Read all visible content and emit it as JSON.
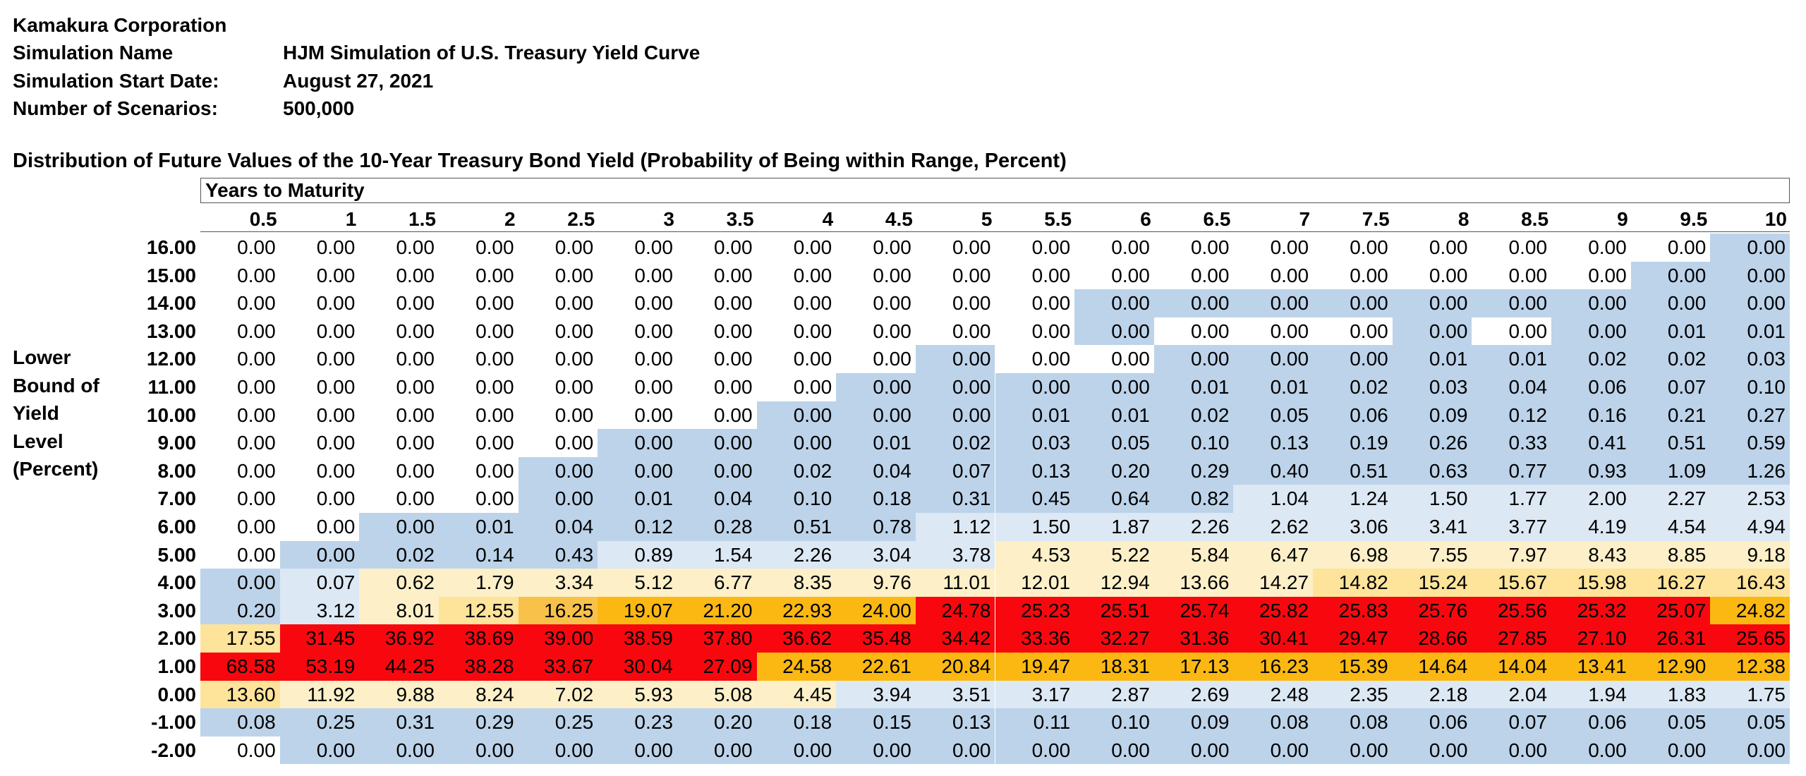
{
  "header": {
    "company": "Kamakura Corporation",
    "rows": [
      {
        "key": "Simulation Name",
        "value": "HJM Simulation of U.S. Treasury Yield Curve"
      },
      {
        "key": "Simulation Start Date:",
        "value": "August 27, 2021"
      },
      {
        "key": "Number of Scenarios:",
        "value": "500,000"
      }
    ]
  },
  "table_title": "Distribution of Future Values of the 10-Year Treasury Bond Yield (Probability of Being within Range, Percent)",
  "column_group_label": "Years to Maturity",
  "side_label_lines": [
    "Lower",
    "Bound of",
    "Yield",
    "Level",
    "(Percent)"
  ],
  "columns": [
    "0.5",
    "1",
    "1.5",
    "2",
    "2.5",
    "3",
    "3.5",
    "4",
    "4.5",
    "5",
    "5.5",
    "6",
    "6.5",
    "7",
    "7.5",
    "8",
    "8.5",
    "9",
    "9.5",
    "10"
  ],
  "rows": [
    {
      "label": "16.00",
      "values": [
        "0.00",
        "0.00",
        "0.00",
        "0.00",
        "0.00",
        "0.00",
        "0.00",
        "0.00",
        "0.00",
        "0.00",
        "0.00",
        "0.00",
        "0.00",
        "0.00",
        "0.00",
        "0.00",
        "0.00",
        "0.00",
        "0.00",
        "0.00"
      ]
    },
    {
      "label": "15.00",
      "values": [
        "0.00",
        "0.00",
        "0.00",
        "0.00",
        "0.00",
        "0.00",
        "0.00",
        "0.00",
        "0.00",
        "0.00",
        "0.00",
        "0.00",
        "0.00",
        "0.00",
        "0.00",
        "0.00",
        "0.00",
        "0.00",
        "0.00",
        "0.00"
      ]
    },
    {
      "label": "14.00",
      "values": [
        "0.00",
        "0.00",
        "0.00",
        "0.00",
        "0.00",
        "0.00",
        "0.00",
        "0.00",
        "0.00",
        "0.00",
        "0.00",
        "0.00",
        "0.00",
        "0.00",
        "0.00",
        "0.00",
        "0.00",
        "0.00",
        "0.00",
        "0.00"
      ]
    },
    {
      "label": "13.00",
      "values": [
        "0.00",
        "0.00",
        "0.00",
        "0.00",
        "0.00",
        "0.00",
        "0.00",
        "0.00",
        "0.00",
        "0.00",
        "0.00",
        "0.00",
        "0.00",
        "0.00",
        "0.00",
        "0.00",
        "0.00",
        "0.00",
        "0.01",
        "0.01"
      ]
    },
    {
      "label": "12.00",
      "values": [
        "0.00",
        "0.00",
        "0.00",
        "0.00",
        "0.00",
        "0.00",
        "0.00",
        "0.00",
        "0.00",
        "0.00",
        "0.00",
        "0.00",
        "0.00",
        "0.00",
        "0.00",
        "0.01",
        "0.01",
        "0.02",
        "0.02",
        "0.03"
      ]
    },
    {
      "label": "11.00",
      "values": [
        "0.00",
        "0.00",
        "0.00",
        "0.00",
        "0.00",
        "0.00",
        "0.00",
        "0.00",
        "0.00",
        "0.00",
        "0.00",
        "0.00",
        "0.01",
        "0.01",
        "0.02",
        "0.03",
        "0.04",
        "0.06",
        "0.07",
        "0.10"
      ]
    },
    {
      "label": "10.00",
      "values": [
        "0.00",
        "0.00",
        "0.00",
        "0.00",
        "0.00",
        "0.00",
        "0.00",
        "0.00",
        "0.00",
        "0.00",
        "0.01",
        "0.01",
        "0.02",
        "0.05",
        "0.06",
        "0.09",
        "0.12",
        "0.16",
        "0.21",
        "0.27"
      ]
    },
    {
      "label": "9.00",
      "values": [
        "0.00",
        "0.00",
        "0.00",
        "0.00",
        "0.00",
        "0.00",
        "0.00",
        "0.00",
        "0.01",
        "0.02",
        "0.03",
        "0.05",
        "0.10",
        "0.13",
        "0.19",
        "0.26",
        "0.33",
        "0.41",
        "0.51",
        "0.59"
      ]
    },
    {
      "label": "8.00",
      "values": [
        "0.00",
        "0.00",
        "0.00",
        "0.00",
        "0.00",
        "0.00",
        "0.00",
        "0.02",
        "0.04",
        "0.07",
        "0.13",
        "0.20",
        "0.29",
        "0.40",
        "0.51",
        "0.63",
        "0.77",
        "0.93",
        "1.09",
        "1.26"
      ]
    },
    {
      "label": "7.00",
      "values": [
        "0.00",
        "0.00",
        "0.00",
        "0.00",
        "0.00",
        "0.01",
        "0.04",
        "0.10",
        "0.18",
        "0.31",
        "0.45",
        "0.64",
        "0.82",
        "1.04",
        "1.24",
        "1.50",
        "1.77",
        "2.00",
        "2.27",
        "2.53"
      ]
    },
    {
      "label": "6.00",
      "values": [
        "0.00",
        "0.00",
        "0.00",
        "0.01",
        "0.04",
        "0.12",
        "0.28",
        "0.51",
        "0.78",
        "1.12",
        "1.50",
        "1.87",
        "2.26",
        "2.62",
        "3.06",
        "3.41",
        "3.77",
        "4.19",
        "4.54",
        "4.94"
      ]
    },
    {
      "label": "5.00",
      "values": [
        "0.00",
        "0.00",
        "0.02",
        "0.14",
        "0.43",
        "0.89",
        "1.54",
        "2.26",
        "3.04",
        "3.78",
        "4.53",
        "5.22",
        "5.84",
        "6.47",
        "6.98",
        "7.55",
        "7.97",
        "8.43",
        "8.85",
        "9.18"
      ]
    },
    {
      "label": "4.00",
      "values": [
        "0.00",
        "0.07",
        "0.62",
        "1.79",
        "3.34",
        "5.12",
        "6.77",
        "8.35",
        "9.76",
        "11.01",
        "12.01",
        "12.94",
        "13.66",
        "14.27",
        "14.82",
        "15.24",
        "15.67",
        "15.98",
        "16.27",
        "16.43"
      ]
    },
    {
      "label": "3.00",
      "values": [
        "0.20",
        "3.12",
        "8.01",
        "12.55",
        "16.25",
        "19.07",
        "21.20",
        "22.93",
        "24.00",
        "24.78",
        "25.23",
        "25.51",
        "25.74",
        "25.82",
        "25.83",
        "25.76",
        "25.56",
        "25.32",
        "25.07",
        "24.82"
      ]
    },
    {
      "label": "2.00",
      "values": [
        "17.55",
        "31.45",
        "36.92",
        "38.69",
        "39.00",
        "38.59",
        "37.80",
        "36.62",
        "35.48",
        "34.42",
        "33.36",
        "32.27",
        "31.36",
        "30.41",
        "29.47",
        "28.66",
        "27.85",
        "27.10",
        "26.31",
        "25.65"
      ]
    },
    {
      "label": "1.00",
      "values": [
        "68.58",
        "53.19",
        "44.25",
        "38.28",
        "33.67",
        "30.04",
        "27.09",
        "24.58",
        "22.61",
        "20.84",
        "19.47",
        "18.31",
        "17.13",
        "16.23",
        "15.39",
        "14.64",
        "14.04",
        "13.41",
        "12.90",
        "12.38"
      ]
    },
    {
      "label": "0.00",
      "values": [
        "13.60",
        "11.92",
        "9.88",
        "8.24",
        "7.02",
        "5.93",
        "5.08",
        "4.45",
        "3.94",
        "3.51",
        "3.17",
        "2.87",
        "2.69",
        "2.48",
        "2.35",
        "2.18",
        "2.04",
        "1.94",
        "1.83",
        "1.75"
      ]
    },
    {
      "label": "-1.00",
      "values": [
        "0.08",
        "0.25",
        "0.31",
        "0.29",
        "0.25",
        "0.23",
        "0.20",
        "0.18",
        "0.15",
        "0.13",
        "0.11",
        "0.10",
        "0.09",
        "0.08",
        "0.08",
        "0.06",
        "0.07",
        "0.06",
        "0.05",
        "0.05"
      ]
    },
    {
      "label": "-2.00",
      "values": [
        "0.00",
        "0.00",
        "0.00",
        "0.00",
        "0.00",
        "0.00",
        "0.00",
        "0.00",
        "0.00",
        "0.00",
        "0.00",
        "0.00",
        "0.00",
        "0.00",
        "0.00",
        "0.00",
        "0.00",
        "0.00",
        "0.00",
        "0.00"
      ]
    }
  ],
  "cell_colors": {
    "c0": "#ffffff",
    "c1": "#bcd3ea",
    "c2": "#dce8f4",
    "c3": "#fdf0c8",
    "c4": "#fee39a",
    "c5": "#f8c24a",
    "c6": "#fbb813",
    "c7": "#f8080e"
  },
  "color_map": [
    "00000000000000000001",
    "00000000000000000011",
    "00000000000111111111",
    "00000000000100010111",
    "00000000010011111111",
    "00000000111111111111",
    "00000001111111111111",
    "00000111111111111111",
    "00001111111111111111",
    "00001111111112222222",
    "00111111122222222222",
    "01111222223333333333",
    "12333333333333444444",
    "12345666677777777776",
    "47777777777777777777",
    "77777776666666666666",
    "43333333222222222222",
    "11111111111111111111",
    "01111111111111111111"
  ]
}
